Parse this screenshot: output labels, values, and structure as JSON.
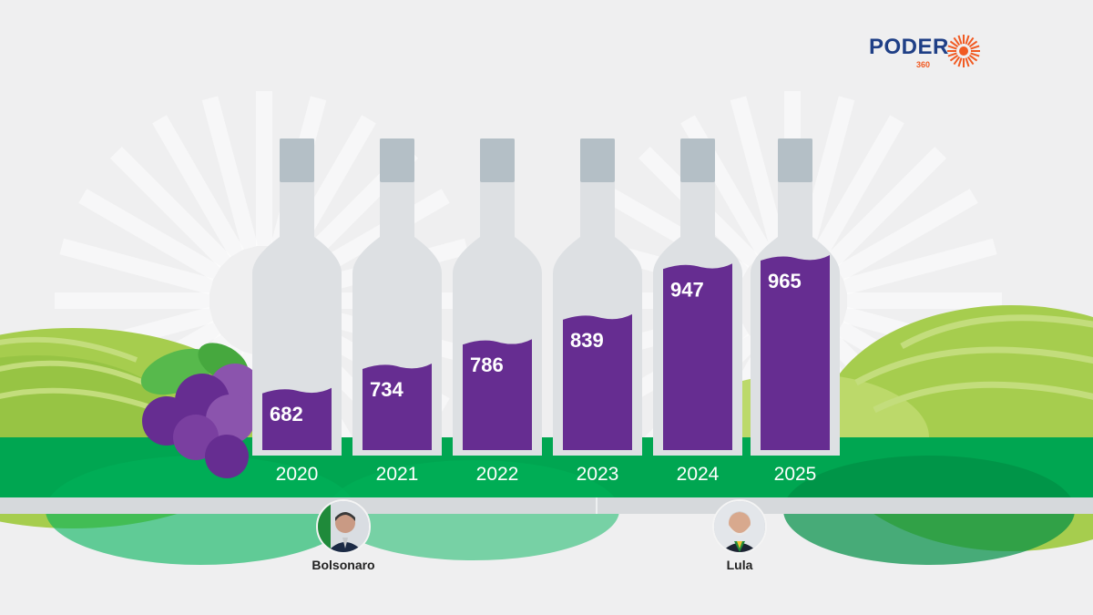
{
  "brand": {
    "name": "PODER",
    "sub": "360"
  },
  "chart_data": {
    "type": "bar",
    "categories": [
      "2020",
      "2021",
      "2022",
      "2023",
      "2024",
      "2025"
    ],
    "values": [
      682,
      734,
      786,
      839,
      947,
      965
    ]
  },
  "presidents": [
    {
      "name": "Bolsonaro"
    },
    {
      "name": "Lula"
    }
  ],
  "colors": {
    "wine": "#662d91",
    "bottle": "#dde0e3",
    "bottle_cap": "#b4bfc6",
    "ground": "#00a651",
    "hill": "#a6cd4e",
    "road": "#d6d9dc",
    "brand_blue": "#1f3f86",
    "brand_orange": "#f15a22"
  }
}
